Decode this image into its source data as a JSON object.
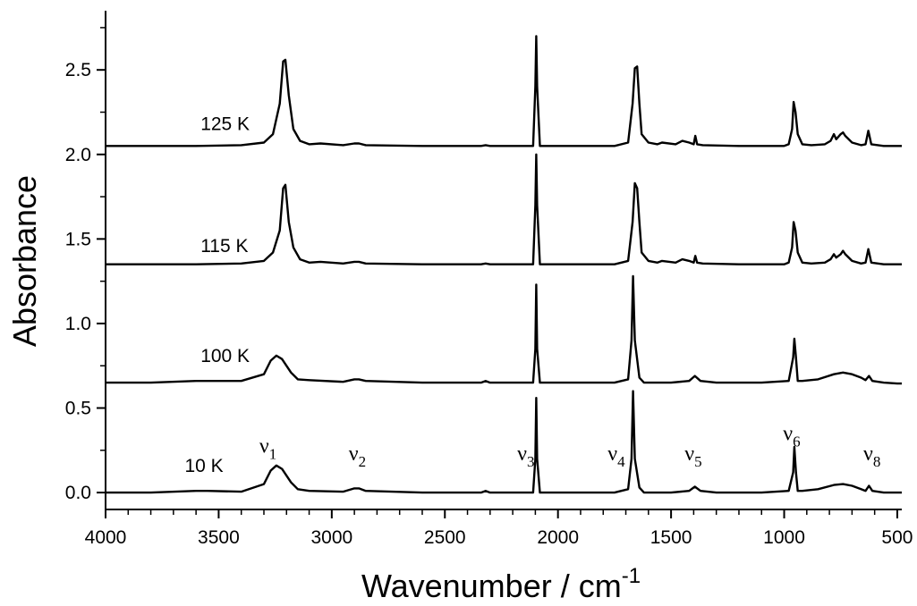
{
  "chart_data": {
    "type": "line",
    "title": "",
    "xlabel": "Wavenumber / cm",
    "xlabel_superscript": "-1",
    "ylabel": "Absorbance",
    "xlim": [
      4000,
      480
    ],
    "ylim": [
      -0.1,
      2.85
    ],
    "x_reversed": true,
    "grid": false,
    "x_ticks": [
      4000,
      3500,
      3000,
      2500,
      2000,
      1500,
      1000,
      500
    ],
    "x_tick_labels": [
      "4000",
      "3500",
      "3000",
      "2500",
      "2000",
      "1500",
      "1000",
      "500"
    ],
    "y_ticks": [
      0.0,
      0.5,
      1.0,
      1.5,
      2.0,
      2.5
    ],
    "y_tick_labels": [
      "0.0",
      "0.5",
      "1.0",
      "1.5",
      "2.0",
      "2.5"
    ],
    "line_color": "#000000",
    "series": [
      {
        "name": "10 K",
        "label_x": 3650,
        "label_y": 0.16,
        "x": [
          4000,
          3800,
          3600,
          3550,
          3400,
          3300,
          3270,
          3245,
          3220,
          3180,
          3150,
          3100,
          2950,
          2900,
          2880,
          2850,
          2600,
          2340,
          2320,
          2300,
          2110,
          2100,
          2096,
          2092,
          2080,
          1750,
          1690,
          1675,
          1668,
          1660,
          1640,
          1620,
          1500,
          1420,
          1395,
          1370,
          1300,
          1100,
          980,
          960,
          955,
          948,
          940,
          920,
          850,
          780,
          740,
          700,
          660,
          640,
          625,
          610,
          560,
          500,
          480
        ],
        "y": [
          0.0,
          0.0,
          0.01,
          0.01,
          0.005,
          0.05,
          0.13,
          0.16,
          0.14,
          0.06,
          0.02,
          0.01,
          0.005,
          0.025,
          0.025,
          0.01,
          0.0,
          0.0,
          0.01,
          0.0,
          0.0,
          0.2,
          0.56,
          0.2,
          0.0,
          0.0,
          0.02,
          0.2,
          0.6,
          0.2,
          0.03,
          0.0,
          0.0,
          0.01,
          0.035,
          0.01,
          0.0,
          0.0,
          0.01,
          0.12,
          0.27,
          0.12,
          0.01,
          0.01,
          0.02,
          0.045,
          0.05,
          0.04,
          0.02,
          0.01,
          0.04,
          0.01,
          0.0,
          0.0,
          0.0
        ]
      },
      {
        "name": "100 K",
        "label_x": 3580,
        "label_y": 0.81,
        "x": [
          4000,
          3800,
          3600,
          3550,
          3400,
          3300,
          3270,
          3245,
          3220,
          3180,
          3150,
          3100,
          2950,
          2900,
          2880,
          2850,
          2600,
          2340,
          2320,
          2300,
          2110,
          2100,
          2096,
          2092,
          2080,
          1750,
          1690,
          1675,
          1668,
          1660,
          1640,
          1620,
          1500,
          1420,
          1395,
          1370,
          1300,
          1100,
          980,
          960,
          955,
          948,
          940,
          920,
          850,
          780,
          740,
          700,
          660,
          640,
          625,
          610,
          560,
          500,
          480
        ],
        "y": [
          0.65,
          0.65,
          0.66,
          0.66,
          0.66,
          0.7,
          0.78,
          0.81,
          0.79,
          0.71,
          0.67,
          0.665,
          0.655,
          0.67,
          0.67,
          0.66,
          0.65,
          0.65,
          0.66,
          0.65,
          0.65,
          0.85,
          1.23,
          0.85,
          0.65,
          0.65,
          0.67,
          0.9,
          1.28,
          0.9,
          0.68,
          0.65,
          0.65,
          0.66,
          0.69,
          0.66,
          0.65,
          0.65,
          0.66,
          0.8,
          0.91,
          0.8,
          0.66,
          0.66,
          0.67,
          0.7,
          0.71,
          0.7,
          0.68,
          0.665,
          0.69,
          0.66,
          0.65,
          0.645,
          0.645
        ]
      },
      {
        "name": "115 K",
        "label_x": 3580,
        "label_y": 1.46,
        "x": [
          4000,
          3800,
          3600,
          3400,
          3300,
          3260,
          3230,
          3215,
          3205,
          3190,
          3170,
          3140,
          3100,
          3050,
          2950,
          2900,
          2880,
          2850,
          2600,
          2340,
          2320,
          2300,
          2110,
          2100,
          2096,
          2092,
          2080,
          1750,
          1690,
          1670,
          1660,
          1650,
          1640,
          1630,
          1600,
          1560,
          1540,
          1480,
          1450,
          1420,
          1400,
          1393,
          1385,
          1360,
          1200,
          1100,
          1000,
          980,
          965,
          958,
          950,
          940,
          920,
          880,
          820,
          795,
          780,
          770,
          750,
          740,
          730,
          700,
          660,
          640,
          628,
          615,
          560,
          500,
          480
        ],
        "y": [
          1.35,
          1.35,
          1.35,
          1.355,
          1.37,
          1.42,
          1.55,
          1.8,
          1.82,
          1.6,
          1.45,
          1.38,
          1.36,
          1.365,
          1.355,
          1.365,
          1.365,
          1.355,
          1.35,
          1.35,
          1.355,
          1.35,
          1.35,
          1.7,
          2.0,
          1.7,
          1.35,
          1.35,
          1.37,
          1.6,
          1.83,
          1.8,
          1.6,
          1.42,
          1.37,
          1.36,
          1.37,
          1.36,
          1.38,
          1.37,
          1.36,
          1.4,
          1.36,
          1.355,
          1.35,
          1.35,
          1.35,
          1.36,
          1.45,
          1.6,
          1.55,
          1.42,
          1.36,
          1.355,
          1.36,
          1.38,
          1.41,
          1.39,
          1.41,
          1.43,
          1.41,
          1.37,
          1.355,
          1.36,
          1.44,
          1.36,
          1.35,
          1.35,
          1.35
        ]
      },
      {
        "name": "125 K",
        "label_x": 3580,
        "label_y": 2.18,
        "x": [
          4000,
          3800,
          3600,
          3400,
          3300,
          3260,
          3230,
          3215,
          3205,
          3190,
          3170,
          3140,
          3100,
          3050,
          2950,
          2900,
          2880,
          2850,
          2600,
          2340,
          2320,
          2300,
          2110,
          2100,
          2096,
          2092,
          2080,
          1750,
          1690,
          1670,
          1660,
          1650,
          1640,
          1630,
          1600,
          1560,
          1540,
          1480,
          1450,
          1420,
          1400,
          1393,
          1385,
          1360,
          1200,
          1100,
          1000,
          980,
          965,
          958,
          950,
          940,
          920,
          880,
          820,
          795,
          780,
          770,
          750,
          740,
          730,
          700,
          660,
          640,
          628,
          615,
          560,
          500,
          480
        ],
        "y": [
          2.05,
          2.05,
          2.05,
          2.055,
          2.07,
          2.12,
          2.3,
          2.55,
          2.56,
          2.35,
          2.15,
          2.08,
          2.06,
          2.065,
          2.055,
          2.065,
          2.065,
          2.055,
          2.05,
          2.05,
          2.055,
          2.05,
          2.05,
          2.4,
          2.7,
          2.4,
          2.05,
          2.05,
          2.07,
          2.3,
          2.51,
          2.52,
          2.3,
          2.12,
          2.07,
          2.06,
          2.07,
          2.06,
          2.08,
          2.07,
          2.06,
          2.11,
          2.06,
          2.055,
          2.05,
          2.05,
          2.05,
          2.06,
          2.15,
          2.31,
          2.25,
          2.12,
          2.06,
          2.055,
          2.06,
          2.08,
          2.12,
          2.09,
          2.12,
          2.13,
          2.11,
          2.07,
          2.055,
          2.06,
          2.14,
          2.06,
          2.05,
          2.05,
          2.05
        ]
      }
    ],
    "annotations": [
      {
        "base": "ν",
        "sub": "1",
        "x": 3320,
        "y": 0.235
      },
      {
        "base": "ν",
        "sub": "2",
        "x": 2925,
        "y": 0.19
      },
      {
        "base": "ν",
        "sub": "3",
        "x": 2180,
        "y": 0.19
      },
      {
        "base": "ν",
        "sub": "4",
        "x": 1780,
        "y": 0.19
      },
      {
        "base": "ν",
        "sub": "5",
        "x": 1440,
        "y": 0.19
      },
      {
        "base": "ν",
        "sub": "6",
        "x": 1005,
        "y": 0.31
      },
      {
        "base": "ν",
        "sub": "8",
        "x": 650,
        "y": 0.19
      }
    ]
  }
}
